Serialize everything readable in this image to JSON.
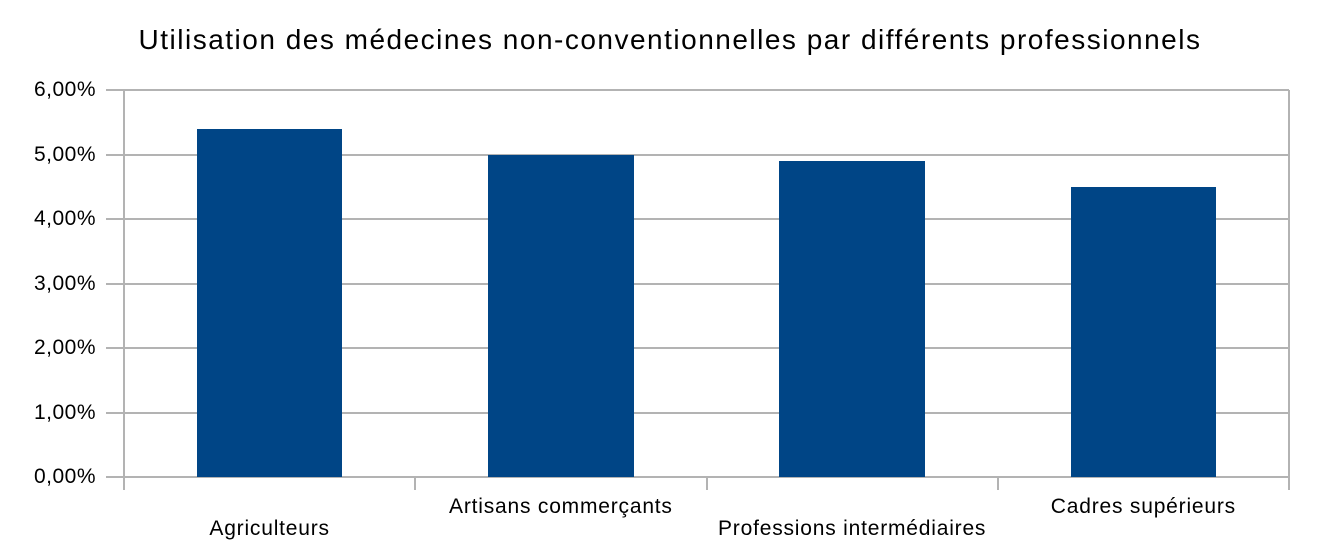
{
  "chart_data": {
    "type": "bar",
    "title": "Utilisation des médecines non-conventionnelles par différents professionnels",
    "categories": [
      "Agriculteurs",
      "Artisans commerçants",
      "Professions intermédiaires",
      "Cadres supérieurs"
    ],
    "values": [
      5.4,
      5.0,
      4.9,
      4.5
    ],
    "unit": "%",
    "ylim": [
      0,
      6
    ],
    "y_ticks": [
      {
        "value": 0,
        "label": "0,00%"
      },
      {
        "value": 1,
        "label": "1,00%"
      },
      {
        "value": 2,
        "label": "2,00%"
      },
      {
        "value": 3,
        "label": "3,00%"
      },
      {
        "value": 4,
        "label": "4,00%"
      },
      {
        "value": 5,
        "label": "5,00%"
      },
      {
        "value": 6,
        "label": "6,00%"
      }
    ],
    "xlabel": "",
    "ylabel": "",
    "legend": "none",
    "grid": "horizontal",
    "label_stagger": [
      "lower",
      "upper",
      "lower",
      "upper"
    ],
    "colors": {
      "bar": "#004586",
      "grid": "#b3b3b3",
      "text": "#000000",
      "background": "#ffffff"
    }
  }
}
